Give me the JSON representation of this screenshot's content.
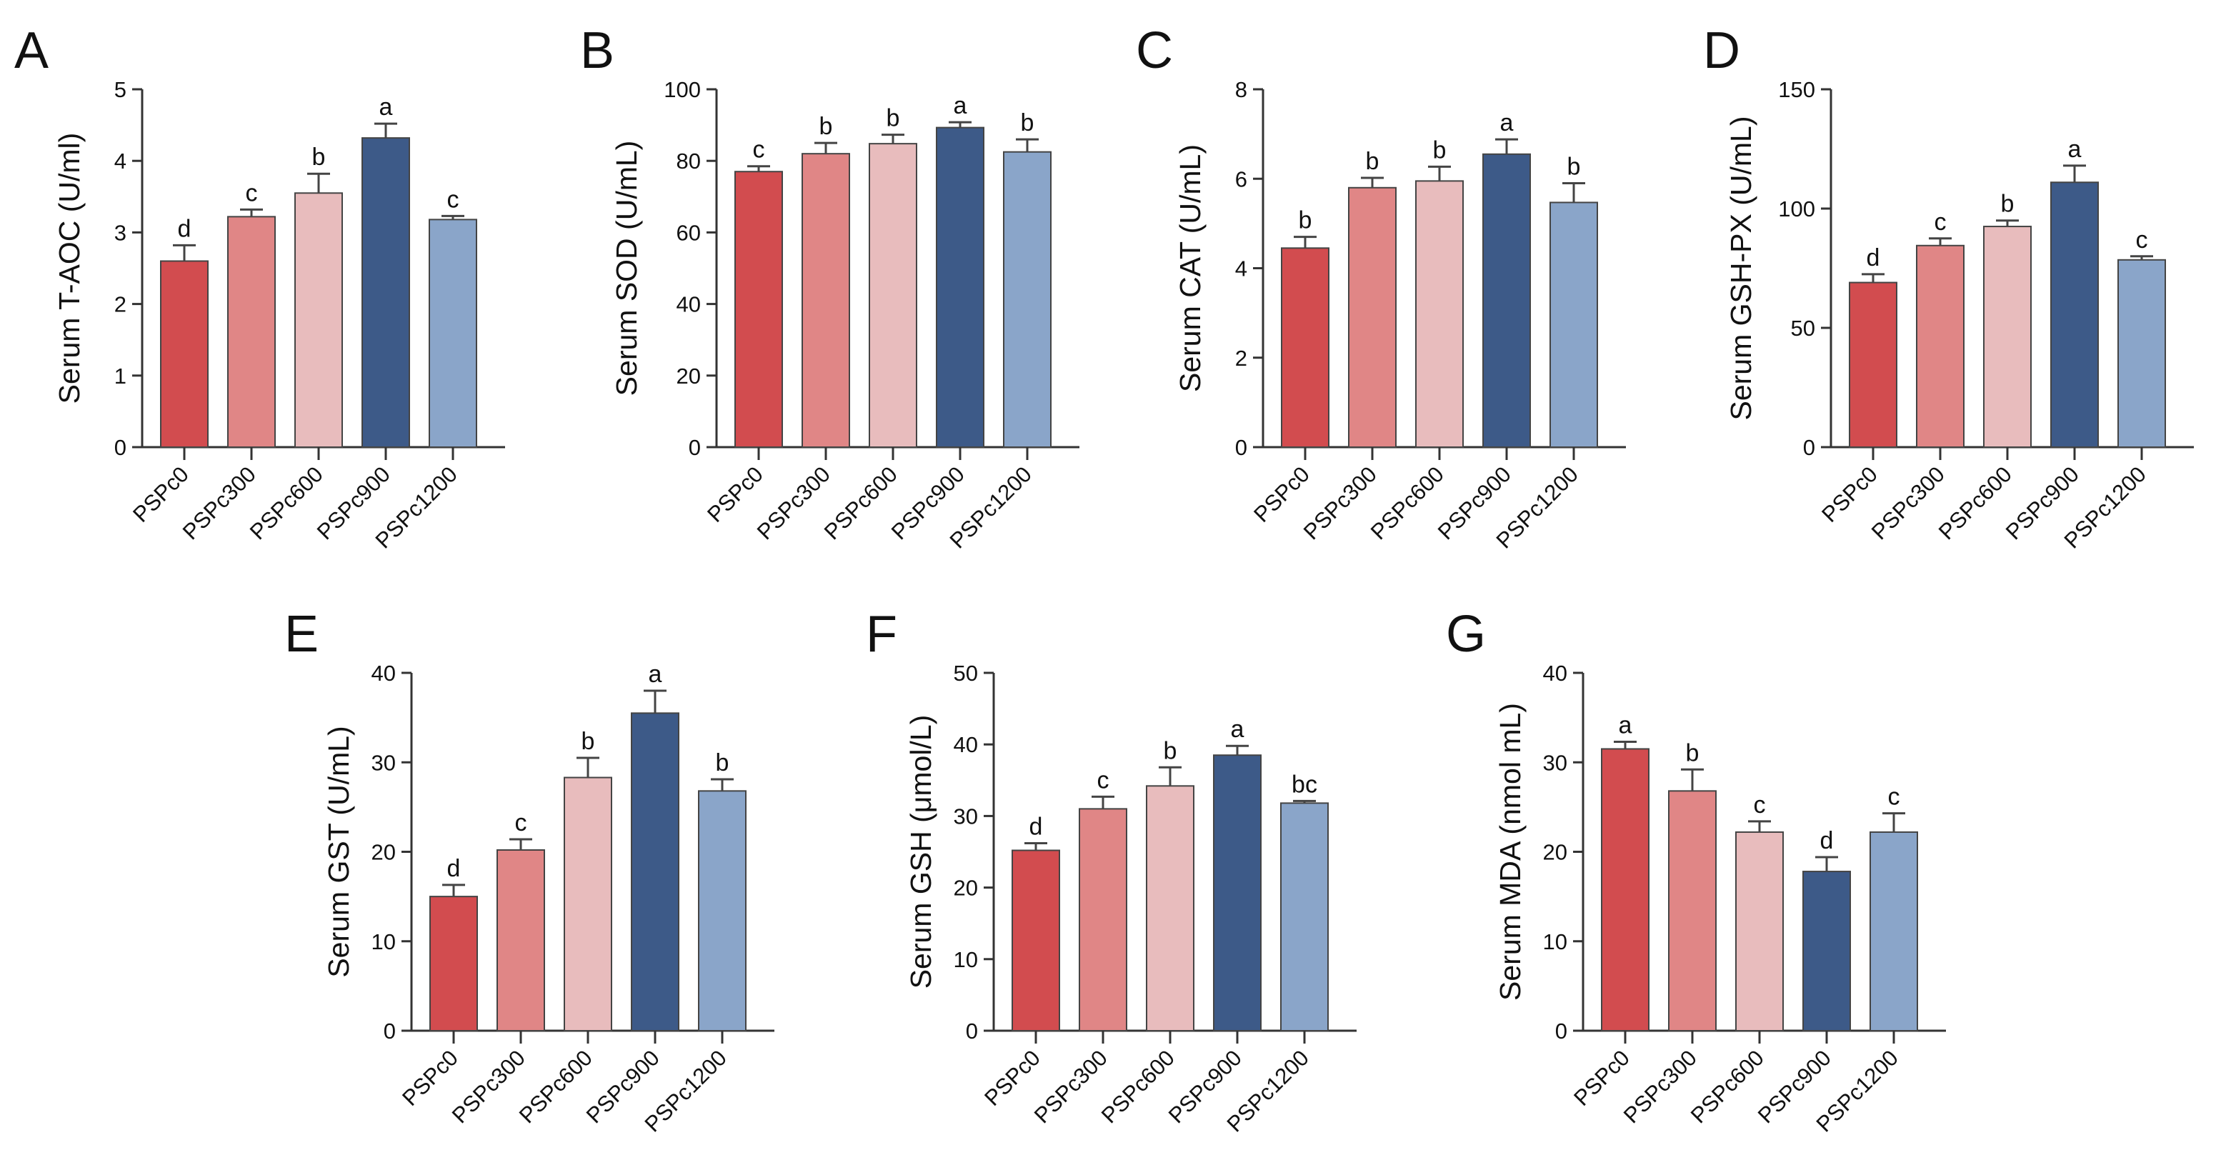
{
  "colors": [
    "#d24c4f",
    "#e08686",
    "#e8bcbd",
    "#3d5a88",
    "#8aa5c9"
  ],
  "chart_data": [
    {
      "panel": "A",
      "type": "bar",
      "ylabel": "Serum T-AOC (U/ml)",
      "ylim": [
        0,
        5
      ],
      "yticks": [
        "0",
        "1",
        "2",
        "3",
        "4",
        "5"
      ],
      "categories": [
        "PSPc0",
        "PSPc300",
        "PSPc600",
        "PSPc900",
        "PSPc1200"
      ],
      "values": [
        2.6,
        3.22,
        3.55,
        4.32,
        3.18
      ],
      "errors": [
        0.22,
        0.1,
        0.27,
        0.2,
        0.05
      ],
      "letters": [
        "d",
        "c",
        "b",
        "a",
        "c"
      ]
    },
    {
      "panel": "B",
      "type": "bar",
      "ylabel": "Serum SOD (U/mL)",
      "ylim": [
        0,
        100
      ],
      "yticks": [
        "0",
        "20",
        "40",
        "60",
        "80",
        "100"
      ],
      "categories": [
        "PSPc0",
        "PSPc300",
        "PSPc600",
        "PSPc900",
        "PSPc1200"
      ],
      "values": [
        77,
        82,
        84.8,
        89.3,
        82.5
      ],
      "errors": [
        1.5,
        3,
        2.5,
        1.5,
        3.5
      ],
      "letters": [
        "c",
        "b",
        "b",
        "a",
        "b"
      ]
    },
    {
      "panel": "C",
      "type": "bar",
      "ylabel": "Serum CAT (U/mL)",
      "ylim": [
        0,
        8
      ],
      "yticks": [
        "0",
        "2",
        "4",
        "6",
        "8"
      ],
      "categories": [
        "PSPc0",
        "PSPc300",
        "PSPc600",
        "PSPc900",
        "PSPc1200"
      ],
      "values": [
        4.45,
        5.8,
        5.95,
        6.55,
        5.47
      ],
      "errors": [
        0.25,
        0.22,
        0.32,
        0.33,
        0.43
      ],
      "letters": [
        "b",
        "b",
        "b",
        "a",
        "b"
      ]
    },
    {
      "panel": "D",
      "type": "bar",
      "ylabel": "Serum GSH-PX (U/mL)",
      "ylim": [
        0,
        150
      ],
      "yticks": [
        "0",
        "50",
        "100",
        "150"
      ],
      "categories": [
        "PSPc0",
        "PSPc300",
        "PSPc600",
        "PSPc900",
        "PSPc1200"
      ],
      "values": [
        69,
        84.5,
        92.5,
        111,
        78.5
      ],
      "errors": [
        3.5,
        3,
        2.5,
        7,
        1.5
      ],
      "letters": [
        "d",
        "c",
        "b",
        "a",
        "c"
      ]
    },
    {
      "panel": "E",
      "type": "bar",
      "ylabel": "Serum GST (U/mL)",
      "ylim": [
        0,
        40
      ],
      "yticks": [
        "0",
        "10",
        "20",
        "30",
        "40"
      ],
      "categories": [
        "PSPc0",
        "PSPc300",
        "PSPc600",
        "PSPc900",
        "PSPc1200"
      ],
      "values": [
        15,
        20.2,
        28.3,
        35.5,
        26.8
      ],
      "errors": [
        1.3,
        1.2,
        2.2,
        2.5,
        1.3
      ],
      "letters": [
        "d",
        "c",
        "b",
        "a",
        "b"
      ]
    },
    {
      "panel": "F",
      "type": "bar",
      "ylabel": "Serum GSH (μmol/L)",
      "ylim": [
        0,
        50
      ],
      "yticks": [
        "0",
        "10",
        "20",
        "30",
        "40",
        "50"
      ],
      "categories": [
        "PSPc0",
        "PSPc300",
        "PSPc600",
        "PSPc900",
        "PSPc1200"
      ],
      "values": [
        25.2,
        31,
        34.2,
        38.5,
        31.8
      ],
      "errors": [
        1,
        1.7,
        2.6,
        1.3,
        0.3
      ],
      "letters": [
        "d",
        "c",
        "b",
        "a",
        "bc"
      ]
    },
    {
      "panel": "G",
      "type": "bar",
      "ylabel": "Serum MDA (nmol mL)",
      "ylim": [
        0,
        40
      ],
      "yticks": [
        "0",
        "10",
        "20",
        "30",
        "40"
      ],
      "categories": [
        "PSPc0",
        "PSPc300",
        "PSPc600",
        "PSPc900",
        "PSPc1200"
      ],
      "values": [
        31.5,
        26.8,
        22.2,
        17.8,
        22.2
      ],
      "errors": [
        0.8,
        2.4,
        1.2,
        1.6,
        2.1
      ],
      "letters": [
        "a",
        "b",
        "c",
        "d",
        "c"
      ]
    }
  ]
}
